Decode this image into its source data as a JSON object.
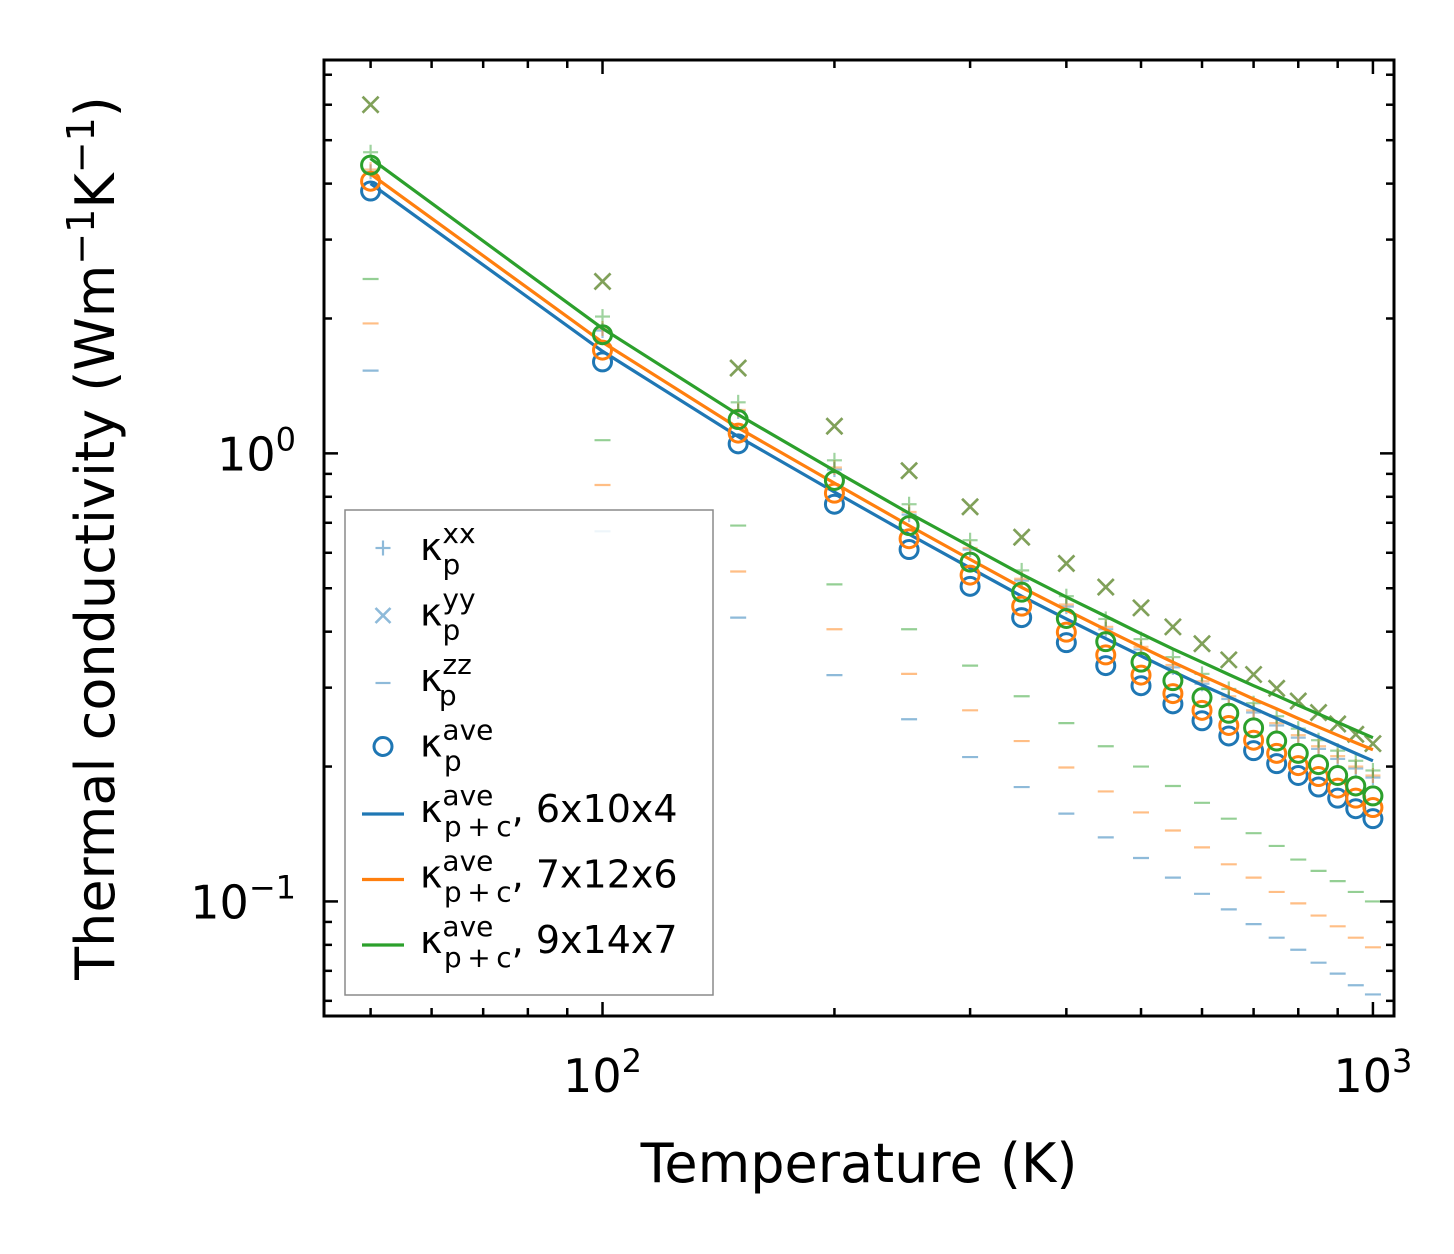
{
  "chart_data": {
    "type": "scatter",
    "xscale": "log",
    "yscale": "log",
    "xlabel": "Temperature (K)",
    "ylabel_text": "Thermal conductivity (Wm",
    "ylabel_parts": [
      "Thermal conductivity (Wm",
      "−1",
      "K",
      "−1",
      ")"
    ],
    "xlim": [
      43.5,
      1065
    ],
    "ylim": [
      0.0555,
      7.55
    ],
    "xticks": [
      {
        "value": 100,
        "base": "10",
        "exp": "2"
      },
      {
        "value": 1000,
        "base": "10",
        "exp": "3"
      }
    ],
    "yticks": [
      {
        "value": 0.1,
        "base": "10",
        "exp": "−1"
      },
      {
        "value": 1,
        "base": "10",
        "exp": "0"
      }
    ],
    "colors": {
      "blue": "#1f77b4",
      "orange": "#ff7f0e",
      "green": "#2ca02c"
    },
    "temperatures": [
      50,
      100,
      150,
      200,
      250,
      300,
      350,
      400,
      450,
      500,
      550,
      600,
      650,
      700,
      750,
      800,
      850,
      900,
      950,
      1000
    ],
    "series": [
      {
        "name": "6x10x4",
        "color": "#1f77b4",
        "kxx": [
          4.25,
          1.88,
          1.24,
          0.92,
          0.73,
          0.61,
          0.52,
          0.455,
          0.405,
          0.365,
          0.333,
          0.306,
          0.283,
          0.264,
          0.247,
          0.232,
          0.219,
          0.208,
          0.198,
          0.189
        ],
        "kyy": [
          6.0,
          2.42,
          1.55,
          1.15,
          0.915,
          0.76,
          0.65,
          0.568,
          0.503,
          0.452,
          0.41,
          0.376,
          0.346,
          0.321,
          0.299,
          0.28,
          0.264,
          0.249,
          0.236,
          0.225
        ],
        "kzz": [
          1.53,
          0.67,
          0.43,
          0.32,
          0.255,
          0.21,
          0.18,
          0.157,
          0.139,
          0.125,
          0.113,
          0.104,
          0.096,
          0.089,
          0.083,
          0.078,
          0.073,
          0.069,
          0.065,
          0.062
        ],
        "kave": [
          3.85,
          1.6,
          1.05,
          0.77,
          0.61,
          0.505,
          0.43,
          0.378,
          0.336,
          0.303,
          0.276,
          0.253,
          0.234,
          0.217,
          0.203,
          0.191,
          0.18,
          0.17,
          0.161,
          0.153
        ],
        "kpc": [
          4.0,
          1.69,
          1.09,
          0.82,
          0.66,
          0.555,
          0.48,
          0.427,
          0.386,
          0.353,
          0.326,
          0.304,
          0.286,
          0.27,
          0.256,
          0.244,
          0.233,
          0.223,
          0.214,
          0.206
        ]
      },
      {
        "name": "7x12x6",
        "color": "#ff7f0e",
        "kxx": [
          4.3,
          1.9,
          1.25,
          0.93,
          0.74,
          0.615,
          0.525,
          0.46,
          0.41,
          0.37,
          0.337,
          0.31,
          0.287,
          0.267,
          0.25,
          0.235,
          0.222,
          0.211,
          0.2,
          0.191
        ],
        "kyy": [
          6.0,
          2.42,
          1.55,
          1.15,
          0.915,
          0.76,
          0.65,
          0.568,
          0.503,
          0.452,
          0.41,
          0.376,
          0.346,
          0.321,
          0.299,
          0.28,
          0.264,
          0.249,
          0.236,
          0.225
        ],
        "kzz": [
          1.95,
          0.85,
          0.545,
          0.405,
          0.322,
          0.267,
          0.228,
          0.199,
          0.176,
          0.158,
          0.144,
          0.132,
          0.121,
          0.113,
          0.105,
          0.099,
          0.093,
          0.088,
          0.083,
          0.079
        ],
        "kave": [
          4.05,
          1.7,
          1.11,
          0.815,
          0.645,
          0.535,
          0.456,
          0.399,
          0.355,
          0.32,
          0.291,
          0.267,
          0.247,
          0.229,
          0.214,
          0.201,
          0.19,
          0.179,
          0.17,
          0.162
        ],
        "kpc": [
          4.2,
          1.77,
          1.14,
          0.858,
          0.69,
          0.58,
          0.502,
          0.447,
          0.404,
          0.37,
          0.342,
          0.319,
          0.3,
          0.283,
          0.269,
          0.256,
          0.245,
          0.235,
          0.226,
          0.218
        ]
      },
      {
        "name": "9x14x7",
        "color": "#2ca02c",
        "kxx": [
          4.7,
          2.02,
          1.3,
          0.965,
          0.77,
          0.64,
          0.548,
          0.48,
          0.427,
          0.385,
          0.351,
          0.322,
          0.298,
          0.277,
          0.259,
          0.243,
          0.229,
          0.217,
          0.206,
          0.196
        ],
        "kyy": [
          6.0,
          2.42,
          1.55,
          1.15,
          0.915,
          0.76,
          0.65,
          0.568,
          0.503,
          0.452,
          0.41,
          0.376,
          0.346,
          0.321,
          0.299,
          0.28,
          0.264,
          0.249,
          0.236,
          0.225
        ],
        "kzz": [
          2.45,
          1.07,
          0.69,
          0.51,
          0.405,
          0.336,
          0.287,
          0.25,
          0.222,
          0.2,
          0.181,
          0.166,
          0.153,
          0.142,
          0.133,
          0.124,
          0.117,
          0.111,
          0.105,
          0.1
        ],
        "kave": [
          4.4,
          1.84,
          1.19,
          0.87,
          0.69,
          0.572,
          0.49,
          0.428,
          0.38,
          0.342,
          0.311,
          0.285,
          0.263,
          0.244,
          0.228,
          0.214,
          0.202,
          0.191,
          0.181,
          0.172
        ],
        "kpc": [
          4.55,
          1.9,
          1.22,
          0.915,
          0.735,
          0.62,
          0.537,
          0.478,
          0.433,
          0.396,
          0.366,
          0.342,
          0.321,
          0.303,
          0.288,
          0.274,
          0.262,
          0.251,
          0.241,
          0.232
        ]
      }
    ],
    "legend": {
      "position": "lower-left",
      "entries": [
        {
          "marker": "plus",
          "color": "#1f77b4",
          "label": "κ",
          "sub": "p",
          "sup": "xx",
          "tail": ""
        },
        {
          "marker": "x",
          "color": "#1f77b4",
          "label": "κ",
          "sub": "p",
          "sup": "yy",
          "tail": ""
        },
        {
          "marker": "dash",
          "color": "#1f77b4",
          "label": "κ",
          "sub": "p",
          "sup": "zz",
          "tail": ""
        },
        {
          "marker": "circle",
          "color": "#1f77b4",
          "label": "κ",
          "sub": "p",
          "sup": "ave",
          "tail": ""
        },
        {
          "marker": "line",
          "color": "#1f77b4",
          "label": "κ",
          "sub": "p + c",
          "sup": "ave",
          "tail": ", 6x10x4"
        },
        {
          "marker": "line",
          "color": "#ff7f0e",
          "label": "κ",
          "sub": "p + c",
          "sup": "ave",
          "tail": ", 7x12x6"
        },
        {
          "marker": "line",
          "color": "#2ca02c",
          "label": "κ",
          "sub": "p + c",
          "sup": "ave",
          "tail": ", 9x14x7"
        }
      ]
    }
  }
}
